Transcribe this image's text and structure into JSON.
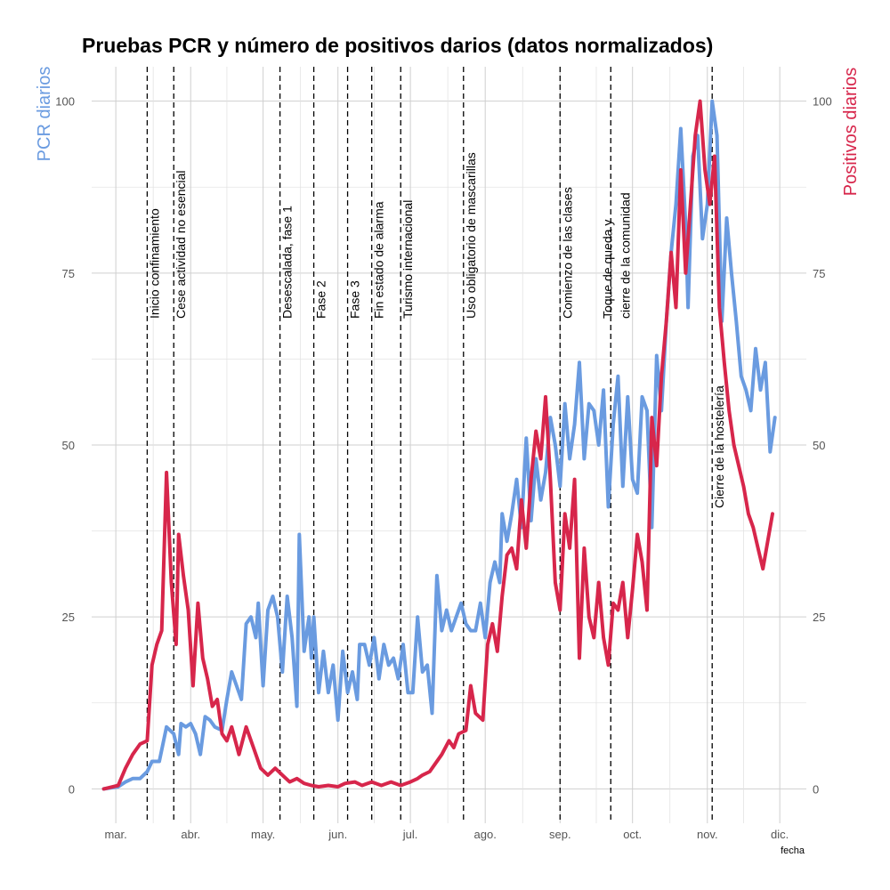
{
  "chart_data": {
    "type": "line",
    "title": "Pruebas PCR y número de positivos darios (datos normalizados)",
    "ylabel": "PCR diarios",
    "ylabel_right": "Positivos diarios",
    "xlabel": "fecha",
    "ylim": [
      -5,
      105
    ],
    "yticks": [
      0,
      25,
      50,
      75,
      100
    ],
    "xlim": [
      "2020-02-20",
      "2020-12-12"
    ],
    "xticks": [
      {
        "date": "2020-03-01",
        "label": "mar."
      },
      {
        "date": "2020-04-01",
        "label": "abr."
      },
      {
        "date": "2020-05-01",
        "label": "may."
      },
      {
        "date": "2020-06-01",
        "label": "jun."
      },
      {
        "date": "2020-07-01",
        "label": "jul."
      },
      {
        "date": "2020-08-01",
        "label": "ago."
      },
      {
        "date": "2020-09-01",
        "label": "sep."
      },
      {
        "date": "2020-10-01",
        "label": "oct."
      },
      {
        "date": "2020-11-01",
        "label": "nov."
      },
      {
        "date": "2020-12-01",
        "label": "dic."
      }
    ],
    "grid": true,
    "colors": {
      "pcr": "#6A9BE0",
      "positivos": "#D7264B"
    },
    "events": [
      {
        "date": "2020-03-14",
        "lines": [
          "Inicio confinamiento"
        ]
      },
      {
        "date": "2020-03-25",
        "lines": [
          "Cese actividad no esencial"
        ]
      },
      {
        "date": "2020-05-08",
        "lines": [
          "Desescalada, fase 1"
        ]
      },
      {
        "date": "2020-05-22",
        "lines": [
          "Fase 2"
        ]
      },
      {
        "date": "2020-06-05",
        "lines": [
          "Fase 3"
        ]
      },
      {
        "date": "2020-06-15",
        "lines": [
          "Fin estado de alarma"
        ]
      },
      {
        "date": "2020-06-27",
        "lines": [
          "Turismo internacional"
        ]
      },
      {
        "date": "2020-07-23",
        "lines": [
          "Uso obligatorio de mascarillas"
        ]
      },
      {
        "date": "2020-09-01",
        "lines": [
          "Comienzo de las clases"
        ]
      },
      {
        "date": "2020-09-22",
        "lines": [
          "Toque de queda y",
          "cierre de la comunidad"
        ]
      },
      {
        "date": "2020-11-03",
        "lines": [
          "Cierre de la hostelería"
        ]
      }
    ],
    "series": [
      {
        "name": "PCR diarios",
        "points": [
          [
            "2020-02-25",
            0
          ],
          [
            "2020-03-02",
            0.3
          ],
          [
            "2020-03-05",
            1
          ],
          [
            "2020-03-08",
            1.5
          ],
          [
            "2020-03-11",
            1.5
          ],
          [
            "2020-03-14",
            2.5
          ],
          [
            "2020-03-16",
            4
          ],
          [
            "2020-03-19",
            4
          ],
          [
            "2020-03-22",
            9
          ],
          [
            "2020-03-25",
            8
          ],
          [
            "2020-03-27",
            5
          ],
          [
            "2020-03-28",
            9.5
          ],
          [
            "2020-03-30",
            9
          ],
          [
            "2020-04-01",
            9.5
          ],
          [
            "2020-04-03",
            8
          ],
          [
            "2020-04-05",
            5
          ],
          [
            "2020-04-07",
            10.5
          ],
          [
            "2020-04-09",
            10
          ],
          [
            "2020-04-11",
            9
          ],
          [
            "2020-04-14",
            8.5
          ],
          [
            "2020-04-16",
            13
          ],
          [
            "2020-04-18",
            17
          ],
          [
            "2020-04-20",
            15
          ],
          [
            "2020-04-22",
            13
          ],
          [
            "2020-04-24",
            24
          ],
          [
            "2020-04-26",
            25
          ],
          [
            "2020-04-28",
            22
          ],
          [
            "2020-04-29",
            27
          ],
          [
            "2020-05-01",
            15
          ],
          [
            "2020-05-03",
            26
          ],
          [
            "2020-05-05",
            28
          ],
          [
            "2020-05-07",
            25
          ],
          [
            "2020-05-09",
            17
          ],
          [
            "2020-05-11",
            28
          ],
          [
            "2020-05-13",
            22
          ],
          [
            "2020-05-15",
            12
          ],
          [
            "2020-05-16",
            37
          ],
          [
            "2020-05-18",
            20
          ],
          [
            "2020-05-20",
            25
          ],
          [
            "2020-05-21",
            19
          ],
          [
            "2020-05-22",
            25
          ],
          [
            "2020-05-24",
            14
          ],
          [
            "2020-05-26",
            20
          ],
          [
            "2020-05-28",
            14
          ],
          [
            "2020-05-30",
            18
          ],
          [
            "2020-06-01",
            10
          ],
          [
            "2020-06-03",
            20
          ],
          [
            "2020-06-05",
            14
          ],
          [
            "2020-06-07",
            17
          ],
          [
            "2020-06-09",
            13
          ],
          [
            "2020-06-10",
            21
          ],
          [
            "2020-06-12",
            21
          ],
          [
            "2020-06-14",
            18
          ],
          [
            "2020-06-16",
            22
          ],
          [
            "2020-06-18",
            16
          ],
          [
            "2020-06-20",
            21
          ],
          [
            "2020-06-22",
            18
          ],
          [
            "2020-06-24",
            19
          ],
          [
            "2020-06-26",
            16
          ],
          [
            "2020-06-28",
            21
          ],
          [
            "2020-06-30",
            14
          ],
          [
            "2020-07-02",
            14
          ],
          [
            "2020-07-04",
            25
          ],
          [
            "2020-07-06",
            17
          ],
          [
            "2020-07-08",
            18
          ],
          [
            "2020-07-10",
            11
          ],
          [
            "2020-07-12",
            31
          ],
          [
            "2020-07-14",
            23
          ],
          [
            "2020-07-16",
            26
          ],
          [
            "2020-07-18",
            23
          ],
          [
            "2020-07-20",
            25
          ],
          [
            "2020-07-22",
            27
          ],
          [
            "2020-07-24",
            24
          ],
          [
            "2020-07-26",
            23
          ],
          [
            "2020-07-28",
            23
          ],
          [
            "2020-07-30",
            27
          ],
          [
            "2020-08-01",
            22
          ],
          [
            "2020-08-03",
            30
          ],
          [
            "2020-08-05",
            33
          ],
          [
            "2020-08-07",
            30
          ],
          [
            "2020-08-08",
            40
          ],
          [
            "2020-08-10",
            36
          ],
          [
            "2020-08-12",
            40
          ],
          [
            "2020-08-14",
            45
          ],
          [
            "2020-08-16",
            38
          ],
          [
            "2020-08-18",
            51
          ],
          [
            "2020-08-20",
            39
          ],
          [
            "2020-08-22",
            48
          ],
          [
            "2020-08-24",
            42
          ],
          [
            "2020-08-26",
            46
          ],
          [
            "2020-08-28",
            54
          ],
          [
            "2020-08-30",
            50
          ],
          [
            "2020-09-01",
            44
          ],
          [
            "2020-09-03",
            56
          ],
          [
            "2020-09-05",
            48
          ],
          [
            "2020-09-07",
            53
          ],
          [
            "2020-09-09",
            62
          ],
          [
            "2020-09-11",
            48
          ],
          [
            "2020-09-13",
            56
          ],
          [
            "2020-09-15",
            55
          ],
          [
            "2020-09-17",
            50
          ],
          [
            "2020-09-19",
            58
          ],
          [
            "2020-09-21",
            41
          ],
          [
            "2020-09-23",
            53
          ],
          [
            "2020-09-25",
            60
          ],
          [
            "2020-09-27",
            44
          ],
          [
            "2020-09-29",
            57
          ],
          [
            "2020-10-01",
            45
          ],
          [
            "2020-10-03",
            43
          ],
          [
            "2020-10-05",
            57
          ],
          [
            "2020-10-07",
            55
          ],
          [
            "2020-10-09",
            38
          ],
          [
            "2020-10-11",
            63
          ],
          [
            "2020-10-13",
            55
          ],
          [
            "2020-10-15",
            68
          ],
          [
            "2020-10-17",
            78
          ],
          [
            "2020-10-19",
            85
          ],
          [
            "2020-10-21",
            96
          ],
          [
            "2020-10-23",
            82
          ],
          [
            "2020-10-24",
            70
          ],
          [
            "2020-10-26",
            92
          ],
          [
            "2020-10-28",
            95
          ],
          [
            "2020-10-30",
            80
          ],
          [
            "2020-11-01",
            85
          ],
          [
            "2020-11-03",
            100
          ],
          [
            "2020-11-05",
            95
          ],
          [
            "2020-11-07",
            68
          ],
          [
            "2020-11-09",
            83
          ],
          [
            "2020-11-11",
            75
          ],
          [
            "2020-11-13",
            68
          ],
          [
            "2020-11-15",
            60
          ],
          [
            "2020-11-17",
            58
          ],
          [
            "2020-11-19",
            55
          ],
          [
            "2020-11-21",
            64
          ],
          [
            "2020-11-23",
            58
          ],
          [
            "2020-11-25",
            62
          ],
          [
            "2020-11-27",
            49
          ],
          [
            "2020-11-29",
            54
          ]
        ]
      },
      {
        "name": "Positivos diarios",
        "points": [
          [
            "2020-02-25",
            0
          ],
          [
            "2020-03-02",
            0.5
          ],
          [
            "2020-03-05",
            3
          ],
          [
            "2020-03-08",
            5
          ],
          [
            "2020-03-11",
            6.5
          ],
          [
            "2020-03-14",
            7
          ],
          [
            "2020-03-16",
            18
          ],
          [
            "2020-03-18",
            21
          ],
          [
            "2020-03-20",
            23
          ],
          [
            "2020-03-22",
            46
          ],
          [
            "2020-03-24",
            30
          ],
          [
            "2020-03-26",
            21
          ],
          [
            "2020-03-27",
            37
          ],
          [
            "2020-03-29",
            31
          ],
          [
            "2020-03-31",
            26
          ],
          [
            "2020-04-02",
            15
          ],
          [
            "2020-04-04",
            27
          ],
          [
            "2020-04-06",
            19
          ],
          [
            "2020-04-08",
            16
          ],
          [
            "2020-04-10",
            12
          ],
          [
            "2020-04-12",
            13
          ],
          [
            "2020-04-14",
            8
          ],
          [
            "2020-04-16",
            7
          ],
          [
            "2020-04-18",
            9
          ],
          [
            "2020-04-21",
            5
          ],
          [
            "2020-04-24",
            9
          ],
          [
            "2020-04-27",
            6
          ],
          [
            "2020-04-30",
            3
          ],
          [
            "2020-05-03",
            2
          ],
          [
            "2020-05-06",
            3
          ],
          [
            "2020-05-09",
            2
          ],
          [
            "2020-05-12",
            1
          ],
          [
            "2020-05-15",
            1.5
          ],
          [
            "2020-05-18",
            0.8
          ],
          [
            "2020-05-21",
            0.5
          ],
          [
            "2020-05-24",
            0.3
          ],
          [
            "2020-05-28",
            0.5
          ],
          [
            "2020-06-01",
            0.3
          ],
          [
            "2020-06-04",
            0.8
          ],
          [
            "2020-06-08",
            1
          ],
          [
            "2020-06-11",
            0.5
          ],
          [
            "2020-06-15",
            1
          ],
          [
            "2020-06-19",
            0.5
          ],
          [
            "2020-06-23",
            1
          ],
          [
            "2020-06-27",
            0.5
          ],
          [
            "2020-07-01",
            1
          ],
          [
            "2020-07-04",
            1.5
          ],
          [
            "2020-07-06",
            2
          ],
          [
            "2020-07-09",
            2.5
          ],
          [
            "2020-07-11",
            3.5
          ],
          [
            "2020-07-14",
            5
          ],
          [
            "2020-07-17",
            7
          ],
          [
            "2020-07-19",
            6
          ],
          [
            "2020-07-21",
            8
          ],
          [
            "2020-07-24",
            8.5
          ],
          [
            "2020-07-26",
            15
          ],
          [
            "2020-07-28",
            11
          ],
          [
            "2020-07-31",
            10
          ],
          [
            "2020-08-02",
            21
          ],
          [
            "2020-08-04",
            24
          ],
          [
            "2020-08-06",
            20
          ],
          [
            "2020-08-08",
            28
          ],
          [
            "2020-08-10",
            34
          ],
          [
            "2020-08-12",
            35
          ],
          [
            "2020-08-14",
            32
          ],
          [
            "2020-08-16",
            42
          ],
          [
            "2020-08-18",
            35
          ],
          [
            "2020-08-20",
            45
          ],
          [
            "2020-08-22",
            52
          ],
          [
            "2020-08-24",
            48
          ],
          [
            "2020-08-26",
            57
          ],
          [
            "2020-08-28",
            45
          ],
          [
            "2020-08-30",
            30
          ],
          [
            "2020-09-01",
            26
          ],
          [
            "2020-09-03",
            40
          ],
          [
            "2020-09-05",
            35
          ],
          [
            "2020-09-07",
            45
          ],
          [
            "2020-09-09",
            19
          ],
          [
            "2020-09-11",
            35
          ],
          [
            "2020-09-13",
            25
          ],
          [
            "2020-09-15",
            22
          ],
          [
            "2020-09-17",
            30
          ],
          [
            "2020-09-19",
            22
          ],
          [
            "2020-09-21",
            18
          ],
          [
            "2020-09-23",
            27
          ],
          [
            "2020-09-25",
            26
          ],
          [
            "2020-09-27",
            30
          ],
          [
            "2020-09-29",
            22
          ],
          [
            "2020-10-01",
            29
          ],
          [
            "2020-10-03",
            37
          ],
          [
            "2020-10-05",
            33
          ],
          [
            "2020-10-07",
            26
          ],
          [
            "2020-10-09",
            54
          ],
          [
            "2020-10-11",
            47
          ],
          [
            "2020-10-13",
            60
          ],
          [
            "2020-10-15",
            68
          ],
          [
            "2020-10-17",
            78
          ],
          [
            "2020-10-19",
            70
          ],
          [
            "2020-10-21",
            90
          ],
          [
            "2020-10-23",
            75
          ],
          [
            "2020-10-25",
            85
          ],
          [
            "2020-10-27",
            95
          ],
          [
            "2020-10-29",
            100
          ],
          [
            "2020-10-31",
            90
          ],
          [
            "2020-11-02",
            85
          ],
          [
            "2020-11-04",
            92
          ],
          [
            "2020-11-06",
            70
          ],
          [
            "2020-11-08",
            62
          ],
          [
            "2020-11-10",
            55
          ],
          [
            "2020-11-12",
            50
          ],
          [
            "2020-11-14",
            47
          ],
          [
            "2020-11-16",
            44
          ],
          [
            "2020-11-18",
            40
          ],
          [
            "2020-11-20",
            38
          ],
          [
            "2020-11-22",
            35
          ],
          [
            "2020-11-24",
            32
          ],
          [
            "2020-11-26",
            36
          ],
          [
            "2020-11-28",
            40
          ]
        ]
      }
    ]
  }
}
